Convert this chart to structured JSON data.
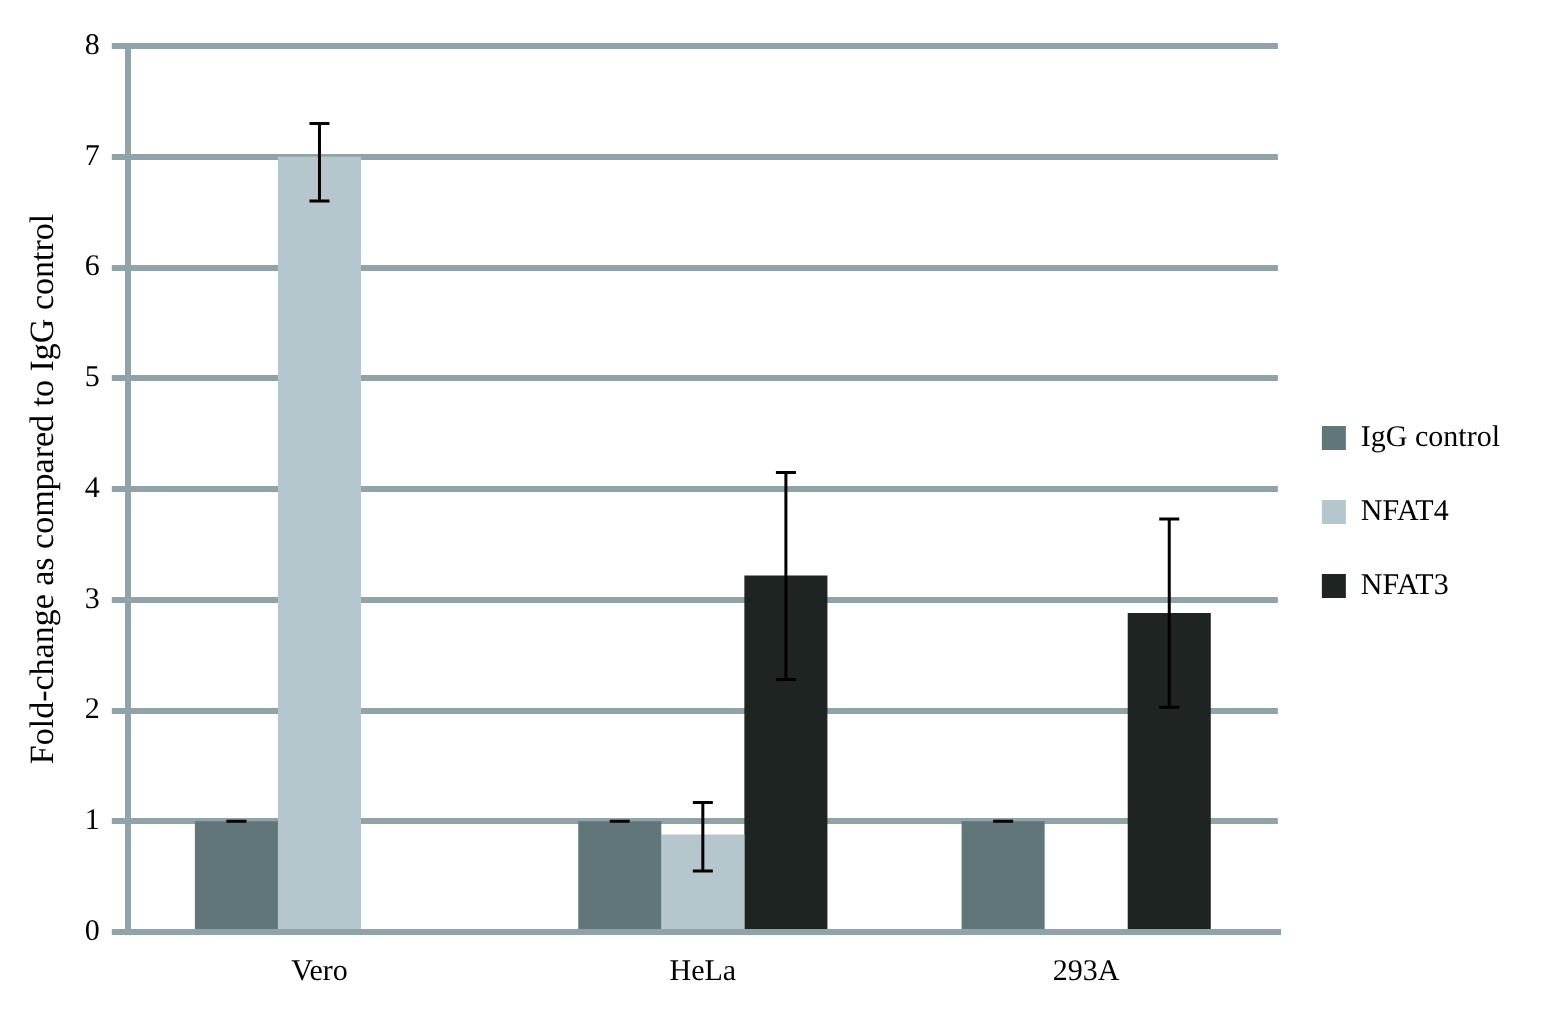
{
  "chart_data": {
    "type": "bar",
    "ylabel": "Fold-change as compared to IgG control",
    "categories": [
      "Vero",
      "HeLa",
      "293A"
    ],
    "series": [
      {
        "name": "IgG control",
        "color": "#607679",
        "values": [
          1,
          1,
          1
        ],
        "errors": [
          0,
          0,
          0
        ]
      },
      {
        "name": "NFAT4",
        "color": "#b5c7cd",
        "values": [
          7.0,
          0.88,
          null
        ],
        "errors": [
          [
            6.6,
            7.3
          ],
          [
            0.55,
            1.17
          ],
          null
        ]
      },
      {
        "name": "NFAT3",
        "color": "#1e2422",
        "values": [
          null,
          3.22,
          2.88
        ],
        "errors": [
          null,
          [
            2.28,
            4.15
          ],
          [
            2.03,
            3.73
          ]
        ]
      }
    ],
    "ylim": [
      0,
      8
    ],
    "yticks": [
      0,
      1,
      2,
      3,
      4,
      5,
      6,
      7,
      8
    ],
    "grid": "y",
    "legend": "right"
  }
}
